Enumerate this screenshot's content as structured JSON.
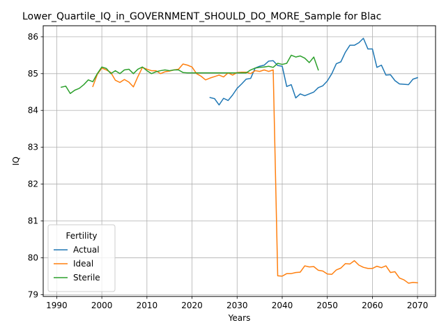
{
  "chart_data": {
    "type": "line",
    "title": "Lower_Quartile_IQ_in_GOVERNMENT_SHOULD_DO_MORE_Sample for Blac",
    "xlabel": "Years",
    "ylabel": "IQ",
    "xlim": [
      1987,
      2074
    ],
    "ylim": [
      78.95,
      86.3
    ],
    "xticks": [
      1990,
      2000,
      2010,
      2020,
      2030,
      2040,
      2050,
      2060,
      2070
    ],
    "yticks": [
      79,
      80,
      81,
      82,
      83,
      84,
      85,
      86
    ],
    "grid": true,
    "legend": {
      "title": "Fertility",
      "position": "lower-left"
    },
    "series": [
      {
        "name": "Actual",
        "color": "#1f77b4",
        "x": [
          2024,
          2025,
          2026,
          2027,
          2028,
          2029,
          2030,
          2031,
          2032,
          2033,
          2034,
          2035,
          2036,
          2037,
          2038,
          2039,
          2040,
          2041,
          2042,
          2043,
          2044,
          2045,
          2046,
          2047,
          2048,
          2049,
          2050,
          2051,
          2052,
          2053,
          2054,
          2055,
          2056,
          2057,
          2058,
          2059,
          2060,
          2061,
          2062,
          2063,
          2064,
          2065,
          2066,
          2067,
          2068,
          2069,
          2070
        ],
        "y": [
          84.35,
          84.32,
          84.15,
          84.33,
          84.27,
          84.42,
          84.6,
          84.72,
          84.85,
          84.87,
          85.15,
          85.2,
          85.23,
          85.34,
          85.35,
          85.22,
          85.2,
          84.65,
          84.7,
          84.34,
          84.45,
          84.4,
          84.45,
          84.5,
          84.62,
          84.67,
          84.8,
          85.0,
          85.27,
          85.32,
          85.58,
          85.77,
          85.77,
          85.84,
          85.96,
          85.67,
          85.67,
          85.17,
          85.23,
          84.96,
          84.97,
          84.81,
          84.72,
          84.71,
          84.7,
          84.85,
          84.89
        ]
      },
      {
        "name": "Ideal",
        "color": "#ff7f0e",
        "x": [
          1998,
          1999,
          2000,
          2001,
          2002,
          2003,
          2004,
          2005,
          2006,
          2007,
          2008,
          2009,
          2010,
          2011,
          2012,
          2013,
          2014,
          2015,
          2016,
          2017,
          2018,
          2019,
          2020,
          2021,
          2022,
          2023,
          2024,
          2025,
          2026,
          2027,
          2028,
          2029,
          2030,
          2031,
          2032,
          2033,
          2034,
          2035,
          2036,
          2037,
          2038,
          2039,
          2040,
          2041,
          2042,
          2043,
          2044,
          2045,
          2046,
          2047,
          2048,
          2049,
          2050,
          2051,
          2052,
          2053,
          2054,
          2055,
          2056,
          2057,
          2058,
          2059,
          2060,
          2061,
          2062,
          2063,
          2064,
          2065,
          2066,
          2067,
          2068,
          2069,
          2070
        ],
        "y": [
          84.65,
          84.98,
          85.15,
          85.1,
          85.03,
          84.82,
          84.76,
          84.84,
          84.77,
          84.64,
          84.92,
          85.17,
          85.12,
          85.08,
          85.08,
          85.0,
          85.05,
          85.07,
          85.1,
          85.12,
          85.26,
          85.23,
          85.18,
          85.0,
          84.93,
          84.83,
          84.88,
          84.92,
          84.96,
          84.91,
          85.02,
          84.96,
          85.03,
          85.04,
          85.04,
          85.0,
          85.08,
          85.06,
          85.1,
          85.06,
          85.1,
          79.51,
          79.5,
          79.57,
          79.57,
          79.6,
          79.61,
          79.78,
          79.75,
          79.76,
          79.66,
          79.64,
          79.56,
          79.55,
          79.67,
          79.72,
          79.84,
          79.83,
          79.92,
          79.8,
          79.74,
          79.71,
          79.71,
          79.77,
          79.73,
          79.78,
          79.6,
          79.62,
          79.45,
          79.4,
          79.31,
          79.33,
          79.32
        ]
      },
      {
        "name": "Sterile",
        "color": "#2ca02c",
        "x": [
          1991,
          1992,
          1993,
          1994,
          1995,
          1996,
          1997,
          1998,
          1999,
          2000,
          2001,
          2002,
          2003,
          2004,
          2005,
          2006,
          2007,
          2008,
          2009,
          2010,
          2011,
          2012,
          2013,
          2014,
          2015,
          2016,
          2017,
          2018,
          2019,
          2020,
          2021,
          2022,
          2023,
          2024,
          2025,
          2026,
          2027,
          2028,
          2029,
          2030,
          2031,
          2032,
          2033,
          2034,
          2035,
          2036,
          2037,
          2038,
          2039,
          2040,
          2041,
          2042,
          2043,
          2044,
          2045,
          2046,
          2047,
          2048
        ],
        "y": [
          84.63,
          84.66,
          84.46,
          84.55,
          84.6,
          84.7,
          84.83,
          84.78,
          85.0,
          85.18,
          85.14,
          85.0,
          85.08,
          85.0,
          85.1,
          85.12,
          85.0,
          85.12,
          85.18,
          85.08,
          85.0,
          85.05,
          85.08,
          85.1,
          85.08,
          85.1,
          85.1,
          85.03,
          85.02,
          85.02,
          85.02,
          85.02,
          85.02,
          85.02,
          85.02,
          85.02,
          85.02,
          85.02,
          85.02,
          85.02,
          85.02,
          85.02,
          85.1,
          85.15,
          85.17,
          85.18,
          85.2,
          85.17,
          85.28,
          85.25,
          85.28,
          85.5,
          85.45,
          85.48,
          85.42,
          85.3,
          85.45,
          85.1
        ]
      }
    ]
  }
}
